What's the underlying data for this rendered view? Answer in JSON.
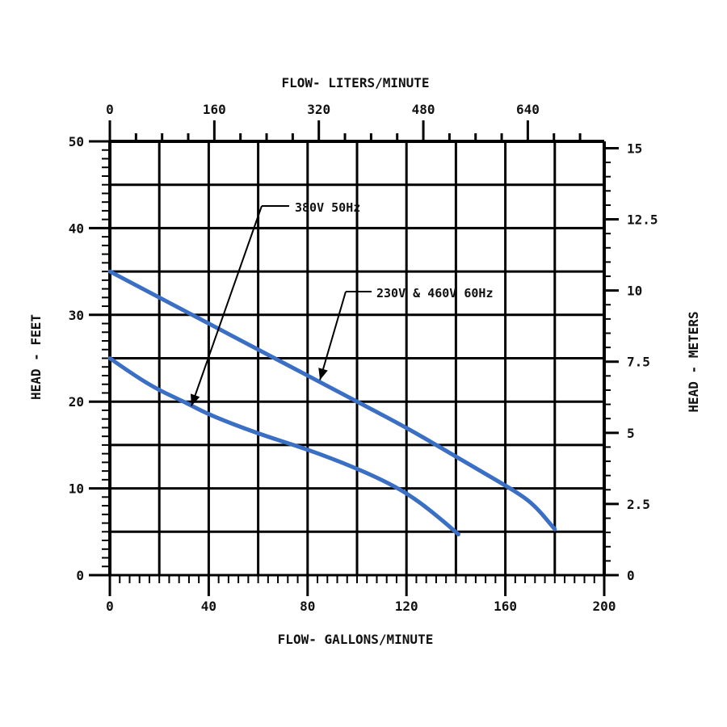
{
  "chart_data": {
    "type": "line",
    "title": "",
    "xlabel": "FLOW- GALLONS/MINUTE",
    "x2label": "FLOW- LITERS/MINUTE",
    "ylabel": "HEAD - FEET",
    "y2label": "HEAD - METERS",
    "xlim": [
      0,
      200
    ],
    "ylim": [
      0,
      50
    ],
    "x2lim": [
      0,
      757
    ],
    "y2lim": [
      0,
      15.24
    ],
    "xticks": [
      0,
      40,
      80,
      120,
      160,
      200
    ],
    "xtick_labels": [
      "0",
      "40",
      "80",
      "120",
      "160",
      "200"
    ],
    "x2ticks": [
      0,
      160,
      320,
      480,
      640
    ],
    "x2tick_labels": [
      "0",
      "160",
      "320",
      "480",
      "640"
    ],
    "yticks": [
      0,
      10,
      20,
      30,
      40,
      50
    ],
    "ytick_labels": [
      "0",
      "10",
      "20",
      "30",
      "40",
      "50"
    ],
    "y2ticks": [
      0,
      2.5,
      5,
      7.5,
      10,
      12.5,
      15
    ],
    "y2tick_labels": [
      "0",
      "2.5",
      "5",
      "7.5",
      "10",
      "12.5",
      "15"
    ],
    "grid": true,
    "legend": "none",
    "series": [
      {
        "name": "230V & 460V 60Hz",
        "label_text": "230V & 460V  60Hz",
        "color": "#3a6fc4",
        "x": [
          0,
          20,
          40,
          60,
          80,
          100,
          120,
          135,
          150,
          165,
          172,
          180
        ],
        "y": [
          35,
          32,
          29,
          26,
          23,
          20,
          17,
          14.5,
          12,
          9.5,
          8,
          5.3
        ]
      },
      {
        "name": "380V 50Hz",
        "label_text": "380V  50Hz",
        "color": "#3a6fc4",
        "x": [
          0,
          10,
          20,
          30,
          40,
          60,
          80,
          100,
          115,
          125,
          135,
          141
        ],
        "y": [
          25,
          23,
          21.3,
          20,
          18.5,
          16.3,
          14.5,
          12.3,
          10.3,
          8.5,
          6.2,
          4.7
        ]
      }
    ]
  }
}
